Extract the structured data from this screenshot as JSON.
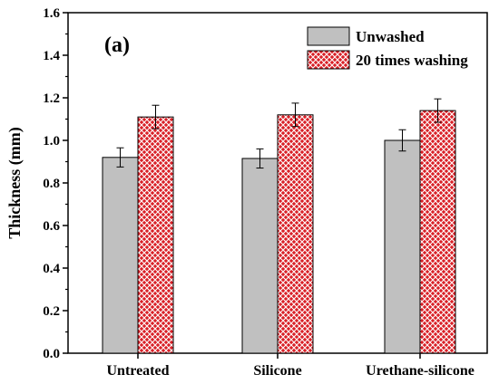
{
  "chart_data": {
    "type": "bar",
    "panel_label": "(a)",
    "title": "",
    "xlabel": "",
    "ylabel": "Thickness (mm)",
    "ylim": [
      0,
      1.6
    ],
    "yticks": [
      "0.0",
      "0.2",
      "0.4",
      "0.6",
      "0.8",
      "1.0",
      "1.2",
      "1.4",
      "1.6"
    ],
    "categories": [
      "Untreated",
      "Silicone",
      "Urethane-silicone"
    ],
    "series": [
      {
        "name": "Unwashed",
        "values": [
          0.92,
          0.915,
          1.0
        ],
        "errors": [
          0.045,
          0.045,
          0.05
        ],
        "color": "#c0c0c0",
        "pattern": "solid"
      },
      {
        "name": "20 times washing",
        "values": [
          1.11,
          1.12,
          1.14
        ],
        "errors": [
          0.055,
          0.055,
          0.055
        ],
        "color": "#d92027",
        "pattern": "crosshatch"
      }
    ],
    "legend": "top-right",
    "grid": false
  }
}
